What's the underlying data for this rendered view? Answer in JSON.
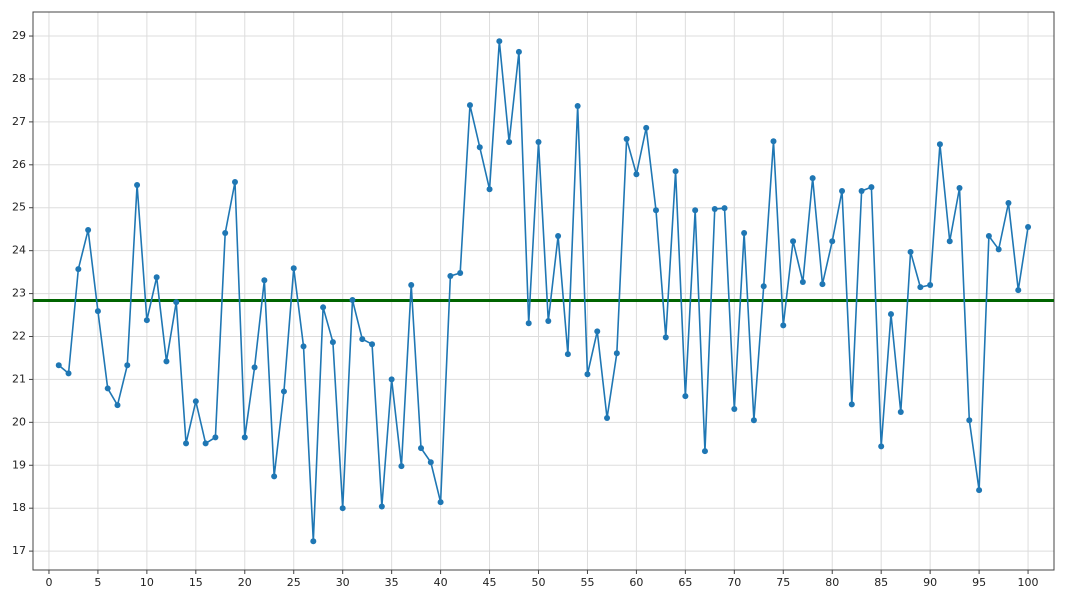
{
  "chart_data": {
    "type": "line",
    "x": [
      1,
      2,
      3,
      4,
      5,
      6,
      7,
      8,
      9,
      10,
      11,
      12,
      13,
      14,
      15,
      16,
      17,
      18,
      19,
      20,
      21,
      22,
      23,
      24,
      25,
      26,
      27,
      28,
      29,
      30,
      31,
      32,
      33,
      34,
      35,
      36,
      37,
      38,
      39,
      40,
      41,
      42,
      43,
      44,
      45,
      46,
      47,
      48,
      49,
      50,
      51,
      52,
      53,
      54,
      55,
      56,
      57,
      58,
      59,
      60,
      61,
      62,
      63,
      64,
      65,
      66,
      67,
      68,
      69,
      70,
      71,
      72,
      73,
      74,
      75,
      76,
      77,
      78,
      79,
      80,
      81,
      82,
      83,
      84,
      85,
      86,
      87,
      88,
      89,
      90,
      91,
      92,
      93,
      94,
      95,
      96,
      97,
      98,
      99,
      100
    ],
    "series": [
      {
        "color": "#1f77b4",
        "values": [
          21.33,
          21.14,
          23.57,
          24.48,
          22.59,
          20.79,
          20.4,
          21.33,
          25.53,
          22.38,
          23.38,
          21.42,
          22.8,
          19.51,
          20.49,
          19.51,
          19.65,
          24.41,
          25.6,
          19.65,
          21.28,
          23.31,
          18.74,
          20.72,
          23.59,
          21.77,
          17.23,
          22.68,
          21.87,
          18.0,
          22.85,
          21.94,
          21.82,
          18.04,
          21.0,
          18.98,
          23.2,
          19.4,
          19.07,
          18.14,
          23.41,
          23.48,
          27.39,
          26.41,
          25.43,
          28.88,
          26.53,
          28.63,
          22.31,
          26.53,
          22.36,
          24.34,
          21.59,
          27.37,
          21.12,
          22.12,
          20.1,
          21.61,
          26.6,
          25.78,
          26.86,
          24.94,
          21.98,
          25.85,
          20.61,
          24.94,
          19.33,
          24.97,
          24.99,
          20.31,
          24.41,
          20.05,
          23.17,
          26.55,
          22.26,
          24.22,
          23.27,
          25.69,
          23.22,
          24.22,
          25.39,
          20.42,
          25.39,
          25.48,
          19.44,
          22.52,
          20.24,
          23.97,
          23.15,
          23.2,
          26.48,
          24.22,
          25.46,
          20.05,
          18.42,
          24.34,
          24.03,
          25.11,
          23.08,
          24.55
        ]
      }
    ],
    "hline": {
      "value": 22.84,
      "color": "#006400"
    },
    "xlim": [
      -1.63,
      102.65
    ],
    "ylim": [
      16.56,
      29.56
    ],
    "xticks": [
      0,
      5,
      10,
      15,
      20,
      25,
      30,
      35,
      40,
      45,
      50,
      55,
      60,
      65,
      70,
      75,
      80,
      85,
      90,
      95,
      100
    ],
    "yticks": [
      17,
      18,
      19,
      20,
      21,
      22,
      23,
      24,
      25,
      26,
      27,
      28,
      29
    ],
    "grid": true
  }
}
